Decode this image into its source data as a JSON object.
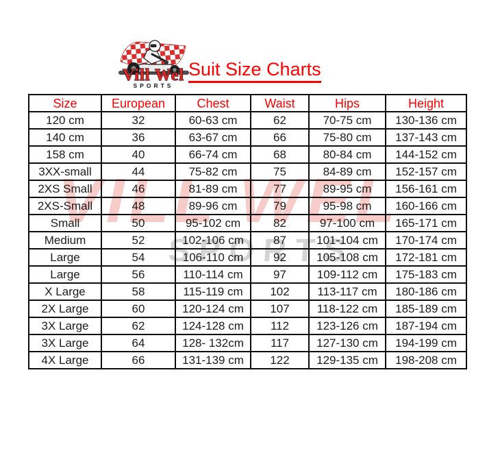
{
  "logo": {
    "icon": "kart-racer-icon",
    "brand_line1": "Vill Wel",
    "brand_line2": "SPORTS"
  },
  "title": "Suit Size Charts",
  "watermark": {
    "line1": "VILL WEL",
    "line2": "SPORTS",
    "pink_color": "#f6cbc8",
    "gray_color": "#d4d4d4"
  },
  "colors": {
    "accent_red": "#fe0000",
    "logo_red": "#e32726",
    "flag_red": "#d92e2e",
    "table_border": "#0d0d0d",
    "table_text": "#1c1c1c"
  },
  "chart_data": {
    "type": "table",
    "title": "Suit Size Charts",
    "columns": [
      "Size",
      "European",
      "Chest",
      "Waist",
      "Hips",
      "Height"
    ],
    "rows": [
      [
        "120 cm",
        "32",
        "60-63 cm",
        "62",
        "70-75 cm",
        "130-136 cm"
      ],
      [
        "140 cm",
        "36",
        "63-67 cm",
        "66",
        "75-80 cm",
        "137-143 cm"
      ],
      [
        "158 cm",
        "40",
        "66-74 cm",
        "68",
        "80-84 cm",
        "144-152 cm"
      ],
      [
        "3XX-small",
        "44",
        "75-82 cm",
        "75",
        "84-89 cm",
        "152-157 cm"
      ],
      [
        "2XS Small",
        "46",
        "81-89 cm",
        "77",
        "89-95 cm",
        "156-161 cm"
      ],
      [
        "2XS-Small",
        "48",
        "89-96 cm",
        "79",
        "95-98 cm",
        "160-166 cm"
      ],
      [
        "Small",
        "50",
        "95-102 cm",
        "82",
        "97-100 cm",
        "165-171 cm"
      ],
      [
        "Medium",
        "52",
        "102-106 cm",
        "87",
        "101-104 cm",
        "170-174 cm"
      ],
      [
        "Large",
        "54",
        "106-110 cm",
        "92",
        "105-108 cm",
        "172-181 cm"
      ],
      [
        "Large",
        "56",
        "110-114 cm",
        "97",
        "109-112 cm",
        "175-183 cm"
      ],
      [
        "X Large",
        "58",
        "115-119 cm",
        "102",
        "113-117 cm",
        "180-186 cm"
      ],
      [
        "2X Large",
        "60",
        "120-124 cm",
        "107",
        "118-122 cm",
        "185-189 cm"
      ],
      [
        "3X Large",
        "62",
        "124-128 cm",
        "112",
        "123-126 cm",
        "187-194 cm"
      ],
      [
        "3X Large",
        "64",
        "128- 132cm",
        "117",
        "127-130 cm",
        "194-199 cm"
      ],
      [
        "4X Large",
        "66",
        "131-139 cm",
        "122",
        "129-135 cm",
        "198-208 cm"
      ]
    ]
  }
}
